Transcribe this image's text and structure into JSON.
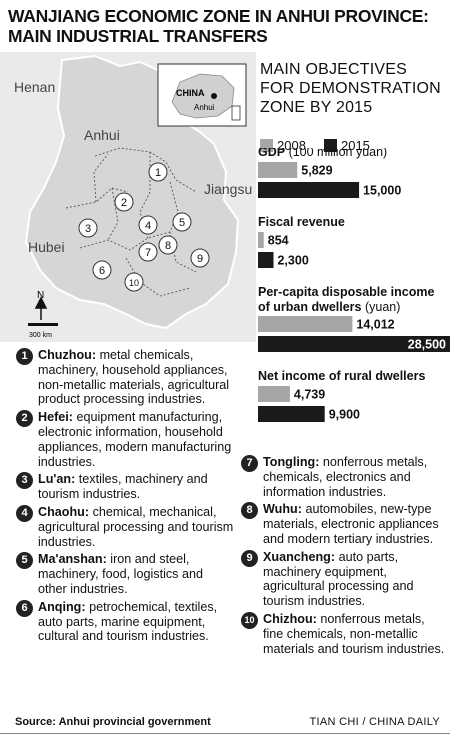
{
  "title": "WANJIANG ECONOMIC ZONE IN ANHUI PROVINCE: MAIN INDUSTRIAL TRANSFERS",
  "map": {
    "labels": {
      "henan": "Henan",
      "anhui": "Anhui",
      "jiangsu": "Jiangsu",
      "hubei": "Hubei"
    },
    "inset": {
      "china": "CHINA",
      "anhui": "Anhui"
    },
    "north": "N",
    "scale": "300 km",
    "markers": [
      "1",
      "2",
      "3",
      "4",
      "5",
      "6",
      "7",
      "8",
      "9",
      "10"
    ]
  },
  "objectives_title": "MAIN OBJECTIVES FOR DEMONSTRATION ZONE BY 2015",
  "colors": {
    "y2008": "#a6a6a6",
    "y2015": "#1a1a1a",
    "map_fill": "#d9d9d9",
    "map_bg": "#e6e6e6"
  },
  "chart_data": {
    "type": "bar",
    "legend": [
      "2008",
      "2015"
    ],
    "groups": [
      {
        "label": "GDP",
        "unit": "(100 million yuan)",
        "values": [
          5829,
          15000
        ],
        "display": [
          "5,829",
          "15,000"
        ]
      },
      {
        "label": "Fiscal revenue",
        "unit": "",
        "values": [
          854,
          2300
        ],
        "display": [
          "854",
          "2,300"
        ]
      },
      {
        "label": "Per-capita disposable income of urban dwellers",
        "unit": "(yuan)",
        "values": [
          14012,
          28500
        ],
        "display": [
          "14,012",
          "28,500"
        ]
      },
      {
        "label": "Net income of rural dwellers",
        "unit": "",
        "values": [
          4739,
          9900
        ],
        "display": [
          "4,739",
          "9,900"
        ]
      }
    ]
  },
  "items_left": [
    {
      "num": "1",
      "name": "Chuzhou:",
      "text": "metal chemicals, machinery, household appliances, non-metallic materials, agricultural product processing industries."
    },
    {
      "num": "2",
      "name": "Hefei:",
      "text": "equipment manufacturing, electronic information, household appliances, modern manufacturing industries."
    },
    {
      "num": "3",
      "name": "Lu'an:",
      "text": "textiles, machinery and tourism industries."
    },
    {
      "num": "4",
      "name": "Chaohu:",
      "text": "chemical, mechanical, agricultural processing and tourism industries."
    },
    {
      "num": "5",
      "name": "Ma'anshan:",
      "text": "iron and steel, machinery, food, logistics and other industries."
    },
    {
      "num": "6",
      "name": "Anqing:",
      "text": "petrochemical, textiles, auto parts, marine equipment, cultural and tourism industries."
    }
  ],
  "items_right": [
    {
      "num": "7",
      "name": "Tongling:",
      "text": "nonferrous metals, chemicals, electronics and information industries."
    },
    {
      "num": "8",
      "name": "Wuhu:",
      "text": "automobiles, new-type materials, electronic appliances and modern tertiary industries."
    },
    {
      "num": "9",
      "name": "Xuancheng:",
      "text": "auto parts, machinery equipment, agricultural processing and tourism industries."
    },
    {
      "num": "10",
      "name": "Chizhou:",
      "text": "nonferrous metals, fine chemicals, non-metallic materials and tourism industries."
    }
  ],
  "source": "Source: Anhui provincial government",
  "credit": "TIAN CHI / CHINA DAILY"
}
